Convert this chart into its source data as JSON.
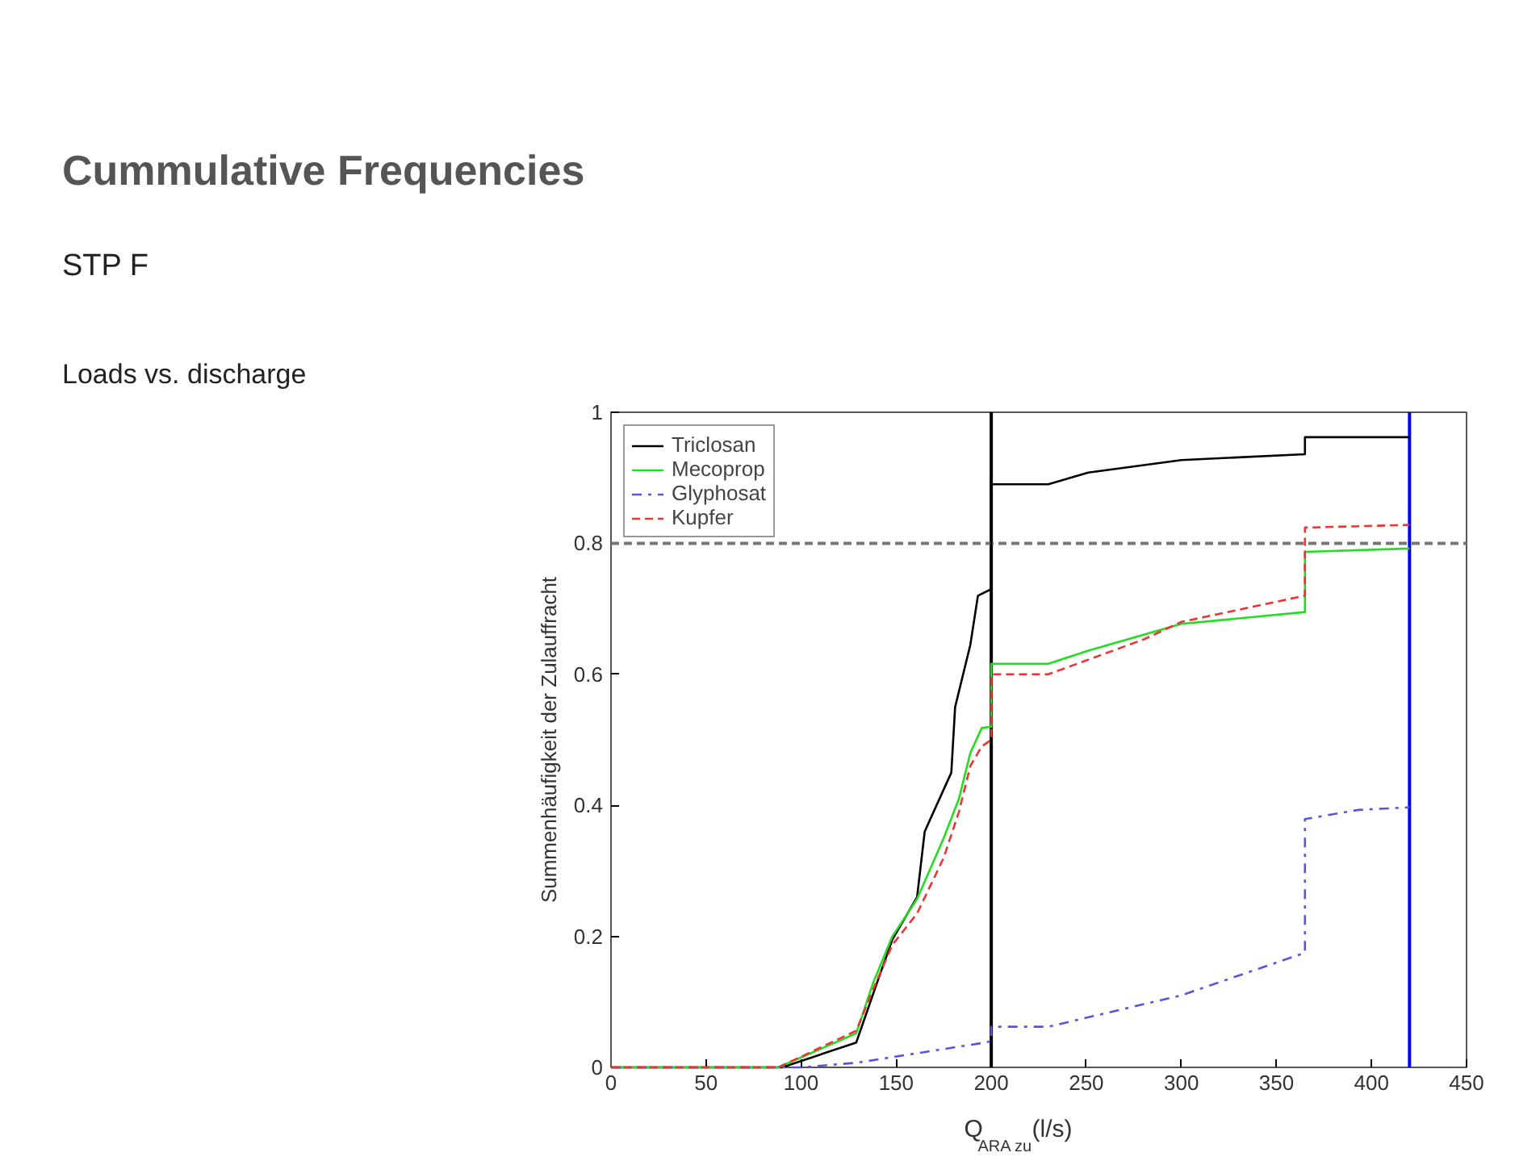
{
  "chart_data": {
    "type": "line",
    "title": "Cummulative Frequencies",
    "subtitle": "STP F",
    "annotations": [
      "Loads vs. discharge"
    ],
    "xlabel": "Q$_{ARA zu}$ (l/s)",
    "ylabel": "Summenhäufigkeit der Zulauffracht",
    "xlim": [
      0,
      450
    ],
    "xticks": [
      0,
      50,
      100,
      150,
      200,
      250,
      300,
      350,
      400,
      450
    ],
    "ylim": [
      0,
      1
    ],
    "yticks": [
      0,
      0.2,
      0.4,
      0.6,
      0.8,
      1
    ],
    "grid": false,
    "legend": "top left",
    "series": [
      {
        "name": "Triclosan",
        "color": "#000000",
        "line_style": "solid",
        "x": [
          0,
          90,
          129,
          141,
          148,
          161,
          165,
          179,
          181,
          189,
          193,
          200,
          200,
          230,
          251,
          300,
          365,
          365,
          420
        ],
        "values": [
          0,
          0,
          0.038,
          0.138,
          0.195,
          0.26,
          0.36,
          0.45,
          0.55,
          0.645,
          0.72,
          0.73,
          0.89,
          0.89,
          0.908,
          0.927,
          0.936,
          0.962,
          0.962
        ]
      },
      {
        "name": "Mecoprop",
        "color": "#22dd22",
        "line_style": "solid",
        "x": [
          0,
          88,
          129,
          138,
          148,
          161,
          175,
          183,
          189,
          195,
          200,
          200,
          230,
          251,
          300,
          365,
          365,
          420
        ],
        "values": [
          0,
          0,
          0.052,
          0.13,
          0.2,
          0.257,
          0.35,
          0.41,
          0.48,
          0.518,
          0.52,
          0.616,
          0.616,
          0.636,
          0.677,
          0.695,
          0.787,
          0.792
        ]
      },
      {
        "name": "Glyphosat",
        "color": "#5555dd",
        "line_style": "dashdot",
        "x": [
          0,
          100,
          129,
          197,
          200,
          200,
          230,
          300,
          365,
          365,
          393,
          420
        ],
        "values": [
          0,
          0,
          0.007,
          0.038,
          0.04,
          0.062,
          0.062,
          0.11,
          0.175,
          0.379,
          0.393,
          0.397
        ]
      },
      {
        "name": "Kupfer",
        "color": "#ee3333",
        "line_style": "dashed",
        "x": [
          0,
          88,
          129,
          138,
          148,
          161,
          175,
          183,
          189,
          195,
          200,
          200,
          230,
          280,
          300,
          365,
          365,
          420
        ],
        "values": [
          0,
          0,
          0.056,
          0.12,
          0.187,
          0.235,
          0.32,
          0.39,
          0.46,
          0.49,
          0.5,
          0.6,
          0.6,
          0.653,
          0.68,
          0.72,
          0.824,
          0.828
        ]
      }
    ],
    "ref_lines": [
      {
        "axis": "x",
        "value": 200,
        "color": "#000000",
        "line_style": "solid"
      },
      {
        "axis": "x",
        "value": 420,
        "color": "#0000ff",
        "line_style": "solid"
      },
      {
        "axis": "y",
        "value": 0.8,
        "color": "#777777",
        "line_style": "dashed"
      }
    ]
  }
}
